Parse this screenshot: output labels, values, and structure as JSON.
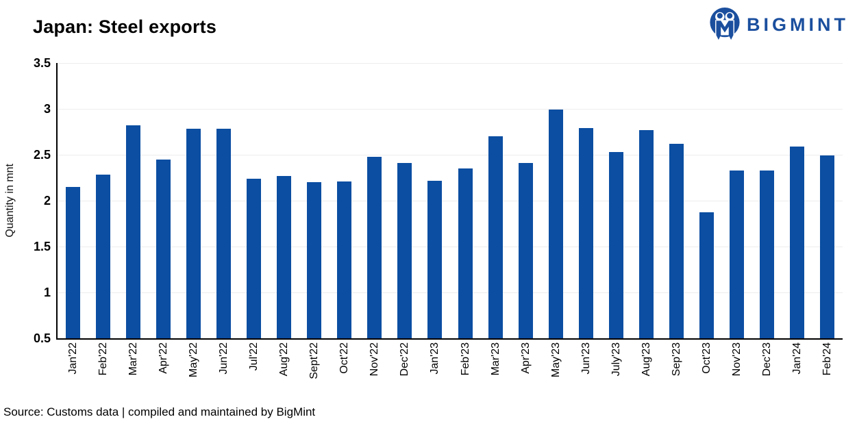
{
  "header": {
    "title": "Japan: Steel exports",
    "logo_text": "BIGMINT"
  },
  "source": {
    "text": "Source: Customs data | compiled and maintained by BigMint"
  },
  "colors": {
    "bar": "#0B4EA2",
    "logo": "#1B4F9E",
    "grid": "#EDEDED",
    "axis": "#000000"
  },
  "chart_data": {
    "type": "bar",
    "title": "Japan: Steel exports",
    "xlabel": "",
    "ylabel": "Quantity in mnt",
    "ylim": [
      0.5,
      3.5
    ],
    "ytick_step": 0.5,
    "grid": true,
    "legend": false,
    "bar_color": "#0B4EA2",
    "categories": [
      "Jan'22",
      "Feb'22",
      "Mar'22",
      "Apr'22",
      "May'22",
      "Jun'22",
      "Jul'22",
      "Aug'22",
      "Sept'22",
      "Oct'22",
      "Nov'22",
      "Dec'22",
      "Jan'23",
      "Feb'23",
      "Mar'23",
      "Apr'23",
      "May'23",
      "Jun'23",
      "July'23",
      "Aug'23",
      "Sep'23",
      "Oct'23",
      "Nov'23",
      "Dec'23",
      "Jan'24",
      "Feb'24"
    ],
    "values": [
      2.15,
      2.28,
      2.82,
      2.45,
      2.78,
      2.78,
      2.24,
      2.27,
      2.2,
      2.21,
      2.48,
      2.41,
      2.22,
      2.35,
      2.7,
      2.41,
      2.99,
      2.79,
      2.53,
      2.77,
      2.62,
      1.87,
      2.33,
      2.33,
      2.59,
      2.49
    ]
  }
}
